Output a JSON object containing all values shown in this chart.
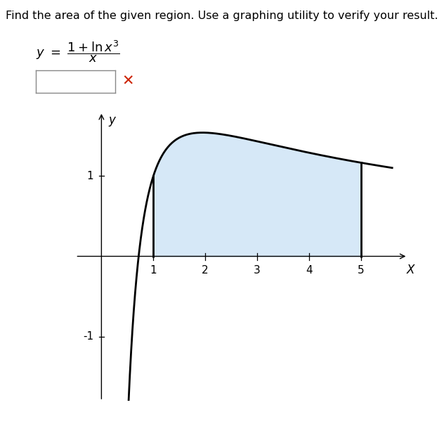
{
  "title": "Find the area of the given region. Use a graphing utility to verify your result.",
  "xlabel": "X",
  "ylabel": "y",
  "x_fill_start": 1.0,
  "x_fill_end": 5.0,
  "x_curve_start": 0.22,
  "x_curve_end": 5.6,
  "xlim": [
    -0.5,
    6.0
  ],
  "ylim": [
    -1.8,
    1.85
  ],
  "xticks": [
    1,
    2,
    3,
    4,
    5
  ],
  "yticks": [
    -1,
    1
  ],
  "fill_color": "#d6e8f7",
  "fill_alpha": 1.0,
  "curve_color": "#000000",
  "curve_linewidth": 2.0,
  "axis_linewidth": 1.0,
  "background_color": "#ffffff",
  "title_fontsize": 11.5,
  "axis_label_fontsize": 12,
  "tick_fontsize": 11
}
